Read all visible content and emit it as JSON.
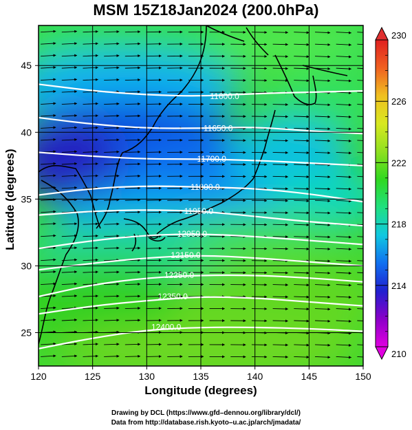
{
  "title": "MSM 15Z18Jan2024 (200.0hPa)",
  "x_axis_label": "Longitude (degrees)",
  "y_axis_label": "Latitude  (degrees)",
  "credits": [
    "Drawing by DCL (https://www.gfd–dennou.org/library/dcl/)",
    "Data from http://database.rish.kyoto–u.ac.jp/arch/jmadata/"
  ],
  "chart_data": {
    "type": "heatmap",
    "title": "MSM 15Z18Jan2024 (200.0hPa)",
    "xlabel": "Longitude (degrees)",
    "ylabel": "Latitude  (degrees)",
    "xlim": [
      120,
      150
    ],
    "ylim": [
      22.5,
      48
    ],
    "x_ticks": [
      120,
      125,
      130,
      135,
      140,
      145,
      150
    ],
    "y_ticks": [
      25,
      30,
      35,
      40,
      45
    ],
    "colorbar": {
      "min": 210,
      "max": 230,
      "ticks": [
        210,
        214,
        218,
        222,
        226,
        230
      ],
      "colors": [
        "#e000e0",
        "#8a00c8",
        "#2020d0",
        "#1070f0",
        "#10c8e0",
        "#20e080",
        "#30d820",
        "#90e020",
        "#d8e820",
        "#f0c020",
        "#f06020",
        "#e02020"
      ]
    },
    "contour_lines": [
      {
        "label": "11600.0",
        "points": [
          [
            120,
            43.6
          ],
          [
            125,
            43.1
          ],
          [
            130,
            42.8
          ],
          [
            135,
            42.7
          ],
          [
            140,
            42.9
          ],
          [
            145,
            43.0
          ],
          [
            150,
            43.1
          ]
        ]
      },
      {
        "label": "11650.0",
        "points": [
          [
            120,
            41.1
          ],
          [
            125,
            40.6
          ],
          [
            130,
            40.3
          ],
          [
            135,
            40.3
          ],
          [
            140,
            40.4
          ],
          [
            145,
            40.1
          ],
          [
            150,
            39.9
          ]
        ]
      },
      {
        "label": "11700.0",
        "points": [
          [
            120,
            38.5
          ],
          [
            125,
            38.2
          ],
          [
            130,
            38.0
          ],
          [
            135,
            38.0
          ],
          [
            140,
            37.9
          ],
          [
            145,
            37.7
          ],
          [
            150,
            37.5
          ]
        ]
      },
      {
        "label": "11800.0",
        "points": [
          [
            120,
            35.3
          ],
          [
            125,
            35.8
          ],
          [
            130,
            36.0
          ],
          [
            135,
            35.9
          ],
          [
            140,
            35.8
          ],
          [
            145,
            35.4
          ],
          [
            150,
            34.8
          ]
        ]
      },
      {
        "label": "11950.0",
        "points": [
          [
            120,
            33.8
          ],
          [
            125,
            34.1
          ],
          [
            130,
            34.2
          ],
          [
            135,
            34.1
          ],
          [
            140,
            33.7
          ],
          [
            145,
            33.3
          ],
          [
            150,
            33.0
          ]
        ]
      },
      {
        "label": "12050.0",
        "points": [
          [
            120,
            31.3
          ],
          [
            125,
            31.9
          ],
          [
            130,
            32.3
          ],
          [
            135,
            32.4
          ],
          [
            140,
            32.2
          ],
          [
            145,
            31.9
          ],
          [
            150,
            31.6
          ]
        ]
      },
      {
        "label": "12150.0",
        "points": [
          [
            120,
            29.7
          ],
          [
            125,
            30.2
          ],
          [
            130,
            30.6
          ],
          [
            135,
            30.8
          ],
          [
            140,
            30.6
          ],
          [
            145,
            30.3
          ],
          [
            150,
            30.0
          ]
        ]
      },
      {
        "label": "12250.0",
        "points": [
          [
            120,
            27.7
          ],
          [
            125,
            28.6
          ],
          [
            130,
            29.1
          ],
          [
            135,
            29.3
          ],
          [
            140,
            29.3
          ],
          [
            145,
            29.1
          ],
          [
            150,
            28.8
          ]
        ]
      },
      {
        "label": "12350.0",
        "points": [
          [
            120,
            26.4
          ],
          [
            125,
            27.0
          ],
          [
            130,
            27.4
          ],
          [
            135,
            27.7
          ],
          [
            140,
            27.6
          ],
          [
            145,
            27.3
          ],
          [
            150,
            27.0
          ]
        ]
      },
      {
        "label": "12400.0",
        "points": [
          [
            120,
            23.8
          ],
          [
            125,
            24.6
          ],
          [
            130,
            25.2
          ],
          [
            135,
            25.4
          ],
          [
            140,
            25.4
          ],
          [
            145,
            25.3
          ],
          [
            150,
            25.1
          ]
        ]
      }
    ]
  }
}
